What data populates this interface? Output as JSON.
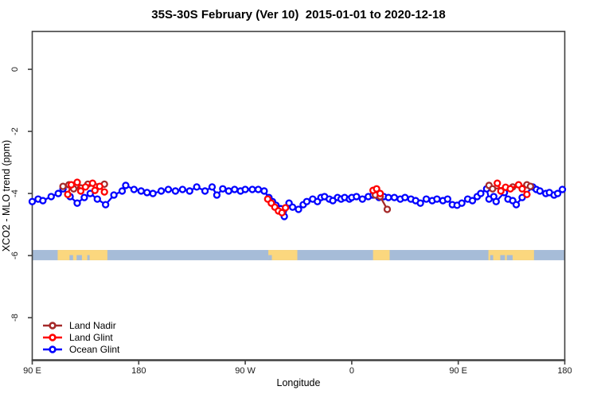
{
  "title": "35S-30S February (Ver 10)  2015-01-01 to 2020-12-18",
  "axes": {
    "xlabel": "Longitude",
    "ylabel": "XCO2 - MLO trend (ppm)",
    "xticks": [
      {
        "label": "90 E",
        "deg": 0
      },
      {
        "label": "180",
        "deg": 90
      },
      {
        "label": "90 W",
        "deg": 180
      },
      {
        "label": "0",
        "deg": 270
      },
      {
        "label": "90 E",
        "deg": 360
      },
      {
        "label": "180",
        "deg": 450
      }
    ],
    "yticks": [
      {
        "label": "0",
        "value": 0
      },
      {
        "label": "-2",
        "value": -2
      },
      {
        "label": "-4",
        "value": -4
      },
      {
        "label": "-6",
        "value": -6
      },
      {
        "label": "-8",
        "value": -8
      }
    ]
  },
  "legend": {
    "items": [
      {
        "label": "Land Nadir",
        "color": "#A52A2A"
      },
      {
        "label": "Land Glint",
        "color": "#FF0000"
      },
      {
        "label": "Ocean Glint",
        "color": "#0000FF"
      }
    ]
  },
  "colors": {
    "axis": "#404040",
    "tick_text": "#1a1a1a",
    "ocean_strip": "#A6BCD8",
    "land_strip": "#FBD77E",
    "land_nadir": "#A52A2A",
    "land_glint": "#FF0000",
    "ocean_glint": "#0000FF",
    "background": "#FFFFFF"
  },
  "chart_data": {
    "type": "scatter",
    "title": "35S-30S February (Ver 10)  2015-01-01 to 2020-12-18",
    "xlabel": "Longitude",
    "ylabel": "XCO2 - MLO trend (ppm)",
    "x_axis": {
      "note": "degrees east of 90E along wrapped axis 90E->180->90W->0->90E->180",
      "range": [
        0,
        450
      ]
    },
    "ylim": [
      -9.37,
      1.22
    ],
    "grid": false,
    "legend_position": "bottom-left",
    "land_ocean_strip": {
      "value_band": [
        -5.82,
        -6.15
      ],
      "ocean_color": "#A6BCD8",
      "land_color": "#FBD77E",
      "land_patches_deg": [
        [
          21.5,
          63.5
        ],
        [
          199.5,
          224.0
        ],
        [
          288.0,
          302.0
        ],
        [
          385.5,
          424.0
        ]
      ],
      "coast_notches_deg": [
        [
          31.5,
          34.5
        ],
        [
          37.5,
          42.0
        ],
        [
          46.5,
          48.5
        ],
        [
          199.5,
          202.5
        ],
        [
          387.0,
          389.5
        ],
        [
          395.5,
          399.5
        ],
        [
          401.0,
          406.0
        ]
      ]
    },
    "series": [
      {
        "name": "Ocean Glint",
        "color": "#0000FF",
        "marker": "open-circle",
        "groups": [
          [
            [
              0,
              -4.26
            ],
            [
              5,
              -4.18
            ],
            [
              9,
              -4.23
            ],
            [
              16,
              -4.1
            ],
            [
              22,
              -4.0
            ],
            [
              26,
              -3.85
            ],
            [
              32,
              -4.1
            ],
            [
              38,
              -4.31
            ],
            [
              44,
              -4.13
            ],
            [
              49,
              -4.0
            ],
            [
              55,
              -4.18
            ],
            [
              62,
              -4.36
            ],
            [
              69,
              -4.05
            ],
            [
              76,
              -3.92
            ],
            [
              79,
              -3.74
            ],
            [
              86,
              -3.87
            ],
            [
              92,
              -3.92
            ],
            [
              97,
              -3.97
            ],
            [
              102,
              -4.0
            ],
            [
              109,
              -3.92
            ],
            [
              115,
              -3.87
            ],
            [
              121,
              -3.92
            ],
            [
              127,
              -3.87
            ],
            [
              133,
              -3.92
            ],
            [
              139,
              -3.79
            ],
            [
              146,
              -3.92
            ],
            [
              152,
              -3.79
            ],
            [
              156,
              -4.05
            ],
            [
              161,
              -3.85
            ],
            [
              166,
              -3.92
            ],
            [
              171,
              -3.87
            ],
            [
              176,
              -3.92
            ],
            [
              180,
              -3.87
            ],
            [
              186,
              -3.87
            ],
            [
              191,
              -3.87
            ],
            [
              196,
              -3.92
            ],
            [
              200,
              -4.13
            ],
            [
              203,
              -4.26
            ],
            [
              206,
              -4.38
            ],
            [
              210,
              -4.49
            ],
            [
              213,
              -4.74
            ],
            [
              217,
              -4.31
            ],
            [
              220,
              -4.44
            ],
            [
              225,
              -4.51
            ],
            [
              229,
              -4.36
            ],
            [
              232,
              -4.26
            ],
            [
              237,
              -4.18
            ],
            [
              241,
              -4.26
            ],
            [
              244,
              -4.13
            ],
            [
              247,
              -4.1
            ],
            [
              251,
              -4.18
            ],
            [
              254,
              -4.23
            ],
            [
              258,
              -4.13
            ],
            [
              261,
              -4.18
            ],
            [
              264,
              -4.13
            ],
            [
              268,
              -4.18
            ],
            [
              270,
              -4.13
            ],
            [
              274,
              -4.1
            ],
            [
              279,
              -4.18
            ],
            [
              284,
              -4.1
            ],
            [
              288,
              -4.05
            ],
            [
              293,
              -4.13
            ],
            [
              297,
              -4.1
            ],
            [
              301,
              -4.13
            ],
            [
              306,
              -4.13
            ],
            [
              311,
              -4.18
            ],
            [
              315,
              -4.13
            ],
            [
              320,
              -4.18
            ],
            [
              324,
              -4.23
            ],
            [
              328,
              -4.31
            ],
            [
              333,
              -4.18
            ],
            [
              338,
              -4.23
            ],
            [
              342,
              -4.18
            ],
            [
              347,
              -4.23
            ],
            [
              351,
              -4.18
            ],
            [
              355,
              -4.36
            ],
            [
              359,
              -4.38
            ],
            [
              363,
              -4.31
            ],
            [
              368,
              -4.18
            ],
            [
              372,
              -4.23
            ],
            [
              376,
              -4.1
            ],
            [
              379,
              -4.0
            ],
            [
              384,
              -3.85
            ],
            [
              386,
              -4.18
            ],
            [
              390,
              -4.1
            ],
            [
              392,
              -4.26
            ],
            [
              399,
              -3.97
            ],
            [
              402,
              -4.18
            ],
            [
              406,
              -4.23
            ],
            [
              409,
              -4.36
            ],
            [
              414,
              -4.13
            ],
            [
              423,
              -3.79
            ],
            [
              426,
              -3.87
            ],
            [
              429,
              -3.92
            ],
            [
              434,
              -4.0
            ],
            [
              437,
              -3.97
            ],
            [
              441,
              -4.05
            ],
            [
              444,
              -4.0
            ],
            [
              448,
              -3.87
            ]
          ]
        ]
      },
      {
        "name": "Land Nadir",
        "color": "#A52A2A",
        "marker": "open-circle",
        "groups": [
          [
            [
              26,
              -3.77
            ],
            [
              31,
              -3.72
            ],
            [
              35,
              -3.85
            ],
            [
              41,
              -3.82
            ],
            [
              47,
              -3.7
            ],
            [
              61,
              -3.7
            ]
          ],
          [
            [
              290,
              -4.05
            ],
            [
              294,
              -4.1
            ],
            [
              300,
              -4.51
            ]
          ],
          [
            [
              386,
              -3.74
            ],
            [
              389,
              -3.85
            ],
            [
              406,
              -3.79
            ],
            [
              418,
              -3.72
            ],
            [
              421,
              -3.77
            ]
          ]
        ]
      },
      {
        "name": "Land Glint",
        "color": "#FF0000",
        "marker": "open-circle",
        "groups": [
          [
            [
              30,
              -4.03
            ],
            [
              33,
              -3.72
            ],
            [
              38,
              -3.64
            ],
            [
              41,
              -3.92
            ],
            [
              45,
              -3.79
            ],
            [
              51,
              -3.67
            ],
            [
              53,
              -3.9
            ],
            [
              57,
              -3.77
            ],
            [
              61,
              -3.95
            ]
          ],
          [
            [
              199,
              -4.18
            ],
            [
              202,
              -4.31
            ],
            [
              205,
              -4.44
            ],
            [
              208,
              -4.56
            ],
            [
              211,
              -4.62
            ],
            [
              214,
              -4.46
            ]
          ],
          [
            [
              288,
              -3.9
            ],
            [
              291,
              -3.85
            ],
            [
              294,
              -4.0
            ]
          ],
          [
            [
              393,
              -3.67
            ],
            [
              396,
              -3.92
            ],
            [
              400,
              -3.8
            ],
            [
              404,
              -3.85
            ],
            [
              411,
              -3.72
            ],
            [
              414,
              -3.85
            ],
            [
              418,
              -4.03
            ]
          ]
        ]
      }
    ]
  }
}
